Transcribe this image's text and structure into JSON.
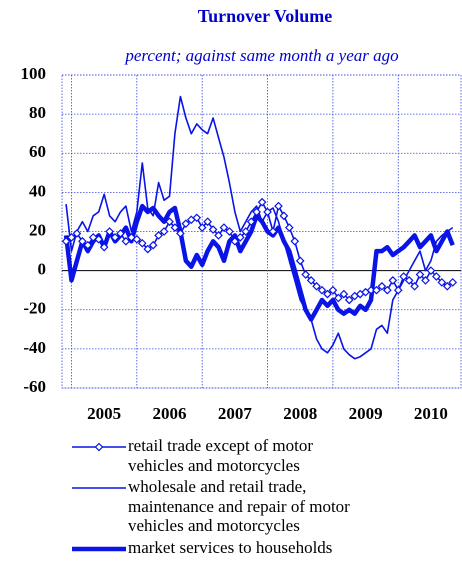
{
  "chart_data": {
    "type": "line",
    "title": "Turnover Volume",
    "subtitle": "percent; against same month a year ago",
    "x": [
      2004.917,
      2005.0,
      2005.083,
      2005.167,
      2005.25,
      2005.333,
      2005.417,
      2005.5,
      2005.583,
      2005.667,
      2005.75,
      2005.833,
      2005.917,
      2006.0,
      2006.083,
      2006.167,
      2006.25,
      2006.333,
      2006.417,
      2006.5,
      2006.583,
      2006.667,
      2006.75,
      2006.833,
      2006.917,
      2007.0,
      2007.083,
      2007.167,
      2007.25,
      2007.333,
      2007.417,
      2007.5,
      2007.583,
      2007.667,
      2007.75,
      2007.833,
      2007.917,
      2008.0,
      2008.083,
      2008.167,
      2008.25,
      2008.333,
      2008.417,
      2008.5,
      2008.583,
      2008.667,
      2008.75,
      2008.833,
      2008.917,
      2009.0,
      2009.083,
      2009.167,
      2009.25,
      2009.333,
      2009.417,
      2009.5,
      2009.583,
      2009.667,
      2009.75,
      2009.833,
      2009.917,
      2010.0,
      2010.083,
      2010.167,
      2010.25,
      2010.333,
      2010.417,
      2010.5,
      2010.583,
      2010.667,
      2010.75,
      2010.833
    ],
    "series": [
      {
        "name": "retail trade except of motor vehicles and motorcycles",
        "color": "#0a14e6",
        "marker": "diamond",
        "width": 1.6,
        "values": [
          15,
          17,
          19,
          15,
          13,
          17,
          16,
          12,
          20,
          17,
          19,
          15,
          17,
          16,
          14,
          11,
          13,
          18,
          20,
          25,
          22,
          19,
          24,
          26,
          27,
          22,
          25,
          21,
          18,
          22,
          20,
          15,
          17,
          20,
          25,
          30,
          35,
          30,
          20,
          33,
          28,
          22,
          15,
          5,
          -2,
          -5,
          -8,
          -10,
          -12,
          -10,
          -14,
          -12,
          -15,
          -13,
          -12,
          -11,
          -10,
          -10,
          -8,
          -10,
          -5,
          -10,
          -3,
          -5,
          -8,
          -2,
          -5,
          0,
          -3,
          -6,
          -8,
          -6
        ]
      },
      {
        "name": "wholesale and retail trade, maintenance and repair of motor vehicles and motorcycles",
        "color": "#0a14e6",
        "width": 1.6,
        "values": [
          34,
          10,
          20,
          25,
          20,
          28,
          30,
          39,
          28,
          25,
          30,
          33,
          20,
          30,
          55,
          32,
          28,
          45,
          36,
          38,
          70,
          89,
          78,
          70,
          75,
          72,
          70,
          78,
          68,
          58,
          45,
          30,
          20,
          25,
          30,
          33,
          25,
          30,
          32,
          25,
          15,
          5,
          -5,
          -15,
          -20,
          -25,
          -35,
          -40,
          -42,
          -38,
          -32,
          -40,
          -43,
          -45,
          -44,
          -42,
          -40,
          -30,
          -28,
          -32,
          -15,
          -10,
          -5,
          0,
          5,
          10,
          0,
          5,
          15,
          18,
          20,
          22
        ]
      },
      {
        "name": "market services to households",
        "color": "#0a14e6",
        "width": 4.5,
        "values": [
          18,
          -5,
          5,
          15,
          10,
          15,
          18,
          12,
          20,
          15,
          18,
          22,
          15,
          25,
          33,
          30,
          32,
          28,
          25,
          30,
          32,
          20,
          5,
          2,
          8,
          3,
          10,
          15,
          12,
          5,
          15,
          18,
          10,
          15,
          20,
          28,
          25,
          20,
          18,
          22,
          15,
          10,
          0,
          -10,
          -20,
          -25,
          -20,
          -15,
          -18,
          -15,
          -20,
          -22,
          -20,
          -22,
          -18,
          -20,
          -15,
          10,
          10,
          12,
          8,
          10,
          12,
          15,
          18,
          12,
          15,
          18,
          10,
          15,
          20,
          13
        ]
      }
    ],
    "xlim": [
      2004.855,
      2010.96
    ],
    "xticks": [
      2005,
      2006,
      2007,
      2008,
      2009,
      2010
    ],
    "ylim": [
      -60,
      100
    ],
    "yticks": [
      -60,
      -40,
      -20,
      0,
      20,
      40,
      60,
      80,
      100
    ],
    "grid": true
  }
}
